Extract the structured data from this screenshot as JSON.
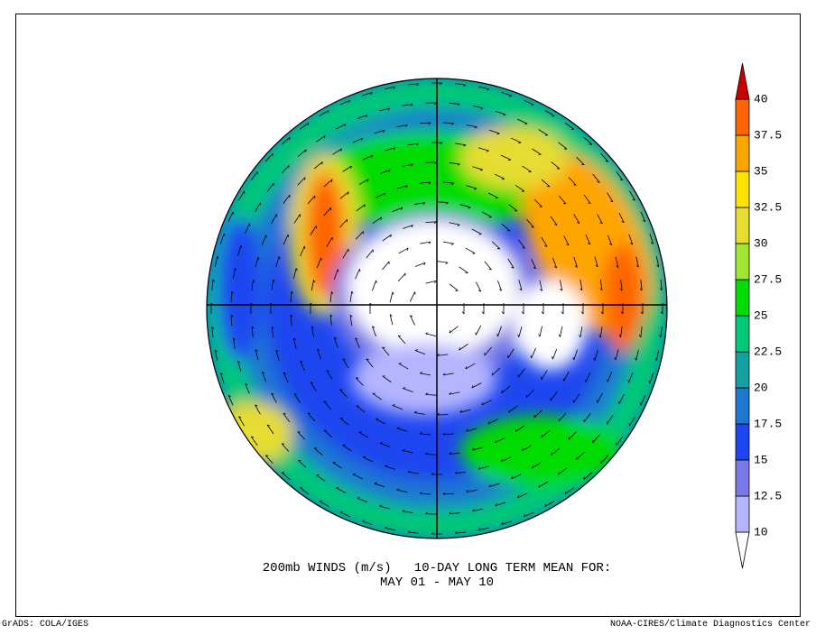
{
  "title": {
    "line1": "200mb WINDS (m/s)   10-DAY LONG TERM MEAN FOR:",
    "line2": "MAY 01 - MAY 10"
  },
  "legend": {
    "labels": [
      "10",
      "12.5",
      "15",
      "17.5",
      "20",
      "22.5",
      "25",
      "27.5",
      "30",
      "32.5",
      "35",
      "37.5",
      "40"
    ],
    "colors": [
      "#ffffff",
      "#b4b4ff",
      "#7878e6",
      "#1e46f0",
      "#1e78d2",
      "#14a0a0",
      "#00c878",
      "#00dc00",
      "#a0e632",
      "#e6dc32",
      "#ffe100",
      "#ffa500",
      "#ff6400",
      "#c80000"
    ]
  },
  "footer": {
    "left": "GrADS: COLA/IGES",
    "right": "NOAA-CIRES/Climate Diagnostics Center"
  }
}
